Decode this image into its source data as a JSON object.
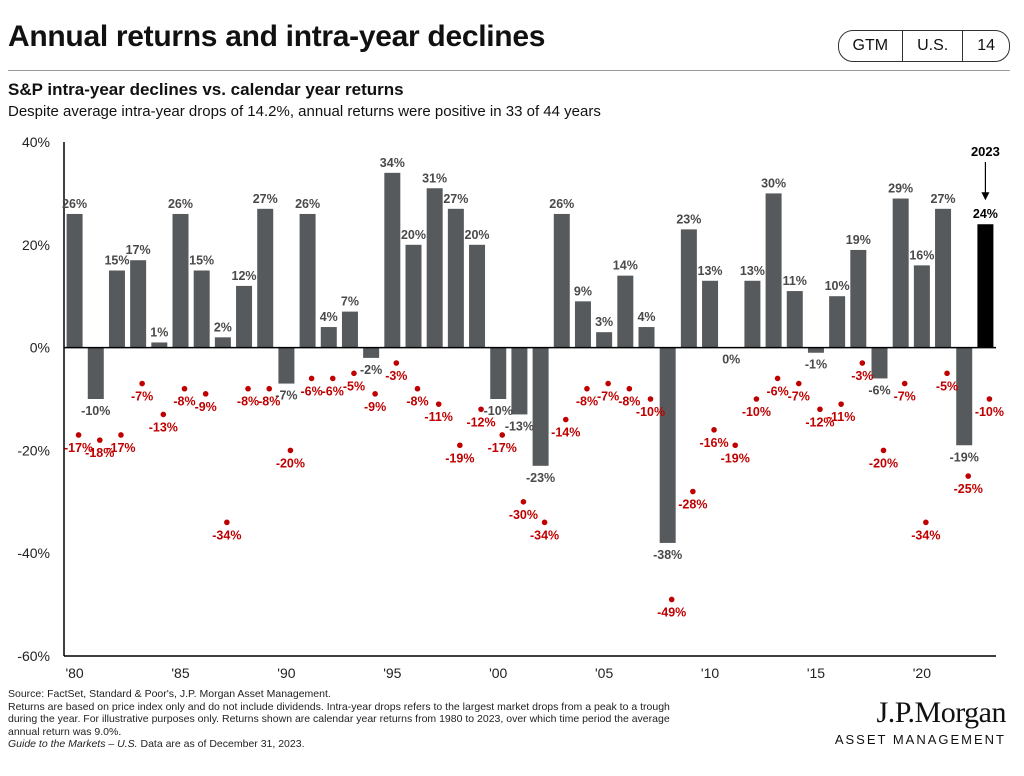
{
  "header": {
    "title": "Annual returns and intra-year declines",
    "badge": [
      "GTM",
      "U.S.",
      "14"
    ]
  },
  "subtitle": "S&P intra-year declines vs. calendar year returns",
  "description": "Despite average intra-year drops of 14.2%, annual returns were positive in 33 of 44 years",
  "colors": {
    "bar": "#565a5c",
    "highlight_bar": "#000000",
    "decline": "#c00000",
    "label": "#4a4a4a"
  },
  "chart_data": {
    "type": "bar",
    "title": "S&P intra-year declines vs. calendar year returns",
    "years": [
      1980,
      1981,
      1982,
      1983,
      1984,
      1985,
      1986,
      1987,
      1988,
      1989,
      1990,
      1991,
      1992,
      1993,
      1994,
      1995,
      1996,
      1997,
      1998,
      1999,
      2000,
      2001,
      2002,
      2003,
      2004,
      2005,
      2006,
      2007,
      2008,
      2009,
      2010,
      2011,
      2012,
      2013,
      2014,
      2015,
      2016,
      2017,
      2018,
      2019,
      2020,
      2021,
      2022,
      2023
    ],
    "series": [
      {
        "name": "Calendar year return",
        "values": [
          26,
          -10,
          15,
          17,
          1,
          26,
          15,
          2,
          12,
          27,
          -7,
          26,
          4,
          7,
          -2,
          34,
          20,
          31,
          27,
          20,
          -10,
          -13,
          -23,
          26,
          9,
          3,
          14,
          4,
          -38,
          23,
          13,
          0,
          13,
          30,
          11,
          -1,
          10,
          19,
          -6,
          29,
          16,
          27,
          -19,
          24
        ]
      },
      {
        "name": "Intra-year decline",
        "values": [
          -17,
          -18,
          -17,
          -7,
          -13,
          -8,
          -9,
          -34,
          -8,
          -8,
          -20,
          -6,
          -6,
          -5,
          -9,
          -3,
          -8,
          -11,
          -19,
          -12,
          -17,
          -30,
          -34,
          -14,
          -8,
          -7,
          -8,
          -10,
          -49,
          -28,
          -16,
          -19,
          -10,
          -6,
          -7,
          -12,
          -11,
          -3,
          -20,
          -7,
          -34,
          -5,
          -25,
          -10
        ]
      }
    ],
    "return_labels": [
      "26%",
      "-10%",
      "15%",
      "17%",
      "1%",
      "26%",
      "15%",
      "2%",
      "12%",
      "27%",
      "-7%",
      "26%",
      "4%",
      "7%",
      "-2%",
      "34%",
      "20%",
      "31%",
      "27%",
      "20%",
      "-10%",
      "-13%",
      "-23%",
      "26%",
      "9%",
      "3%",
      "14%",
      "4%",
      "-38%",
      "23%",
      "13%",
      "0%",
      "13%",
      "30%",
      "11%",
      "-1%",
      "10%",
      "19%",
      "-6%",
      "29%",
      "16%",
      "27%",
      "-19%",
      "24%"
    ],
    "decline_labels": [
      "-17%",
      "-18%",
      "-17%",
      "-7%",
      "-13%",
      "-8%",
      "-9%",
      "-34%",
      "-8%",
      "-8%",
      "-20%",
      "-6%",
      "-6%",
      "-5%",
      "-9%",
      "-3%",
      "-8%",
      "-11%",
      "-19%",
      "-12%",
      "-17%",
      "-30%",
      "-34%",
      "-14%",
      "-8%",
      "-7%",
      "-8%",
      "-10%",
      "-49%",
      "-28%",
      "-16%",
      "-19%",
      "-10%",
      "-6%",
      "-7%",
      "-12%",
      "-11%",
      "-3%",
      "-20%",
      "-7%",
      "-34%",
      "-5%",
      "-25%",
      "-10%"
    ],
    "highlight_year": 2023,
    "highlight_label": "2023",
    "ylim": [
      -60,
      40
    ],
    "y_ticks": [
      40,
      20,
      0,
      -20,
      -40,
      -60
    ],
    "y_tick_labels": [
      "40%",
      "20%",
      "0%",
      "-20%",
      "-40%",
      "-60%"
    ],
    "x_ticks": [
      1980,
      1985,
      1990,
      1995,
      2000,
      2005,
      2010,
      2015,
      2020
    ],
    "x_tick_labels": [
      "'80",
      "'85",
      "'90",
      "'95",
      "'00",
      "'05",
      "'10",
      "'15",
      "'20"
    ]
  },
  "footer": {
    "source": "Source: FactSet, Standard & Poor's, J.P. Morgan Asset Management.",
    "note_1": "Returns are based on price index only and do not include dividends. Intra-year drops refers to the largest market drops from a peak to a trough",
    "note_2": "during the year. For illustrative purposes only. Returns shown are calendar year returns from 1980 to 2023, over which time period the average",
    "note_3": "annual return was 9.0%.",
    "guide": "Guide to the Markets – U.S.",
    "date_note": " Data are as of December 31, 2023."
  },
  "logo": {
    "name": "J.P.Morgan",
    "sub": "ASSET MANAGEMENT"
  }
}
